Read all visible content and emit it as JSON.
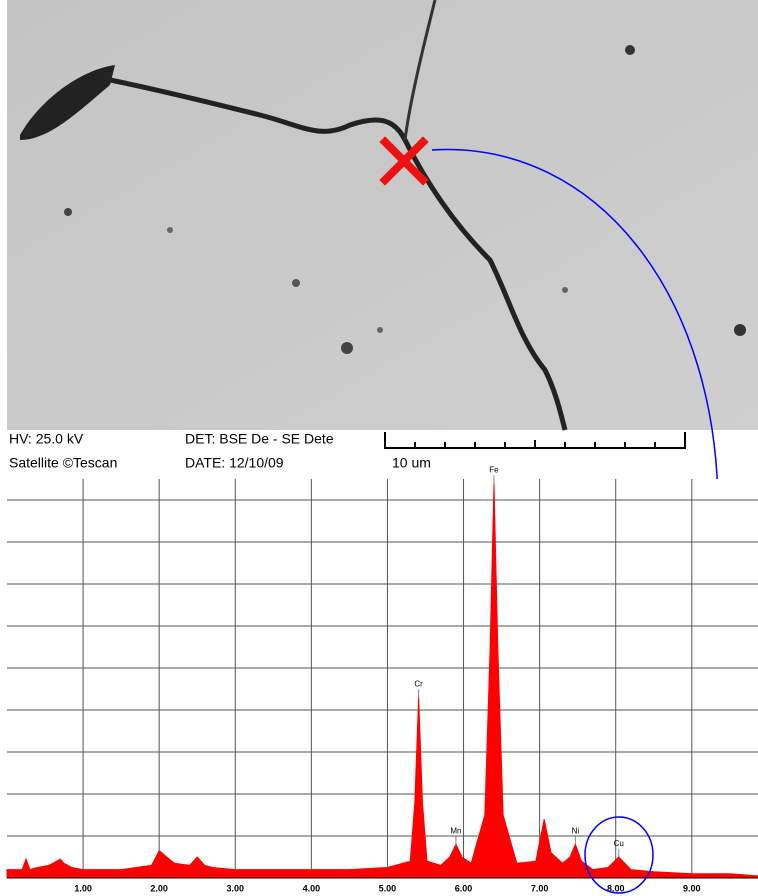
{
  "image_info": {
    "hv": "HV: 25.0 kV",
    "instrument": "Satellite ©Tescan",
    "detector": "DET: BSE De - SE Dete",
    "date": "DATE: 12/10/09",
    "scale": "10 um"
  },
  "chart_data": {
    "type": "area",
    "color": "#ff0000",
    "grid": true,
    "x": [
      0,
      0.2,
      0.25,
      0.3,
      0.4,
      0.55,
      0.7,
      0.75,
      0.85,
      1.0,
      1.5,
      1.9,
      2.0,
      2.1,
      2.2,
      2.4,
      2.5,
      2.6,
      2.7,
      3.0,
      3.5,
      4.0,
      4.5,
      5.0,
      5.3,
      5.36,
      5.41,
      5.46,
      5.52,
      5.7,
      5.82,
      5.9,
      5.98,
      6.1,
      6.28,
      6.35,
      6.4,
      6.45,
      6.52,
      6.7,
      6.95,
      7.06,
      7.15,
      7.3,
      7.4,
      7.47,
      7.55,
      7.7,
      7.9,
      8.04,
      8.2,
      8.5,
      9.0,
      9.5,
      9.87
    ],
    "values": [
      0.2,
      0.2,
      0.45,
      0.2,
      0.25,
      0.3,
      0.45,
      0.35,
      0.25,
      0.2,
      0.2,
      0.3,
      0.65,
      0.5,
      0.35,
      0.3,
      0.5,
      0.3,
      0.25,
      0.2,
      0.2,
      0.2,
      0.2,
      0.25,
      0.4,
      1.8,
      4.3,
      1.8,
      0.4,
      0.3,
      0.5,
      0.8,
      0.5,
      0.35,
      1.5,
      5.5,
      9.4,
      5.5,
      1.5,
      0.35,
      0.4,
      1.4,
      0.6,
      0.35,
      0.5,
      0.8,
      0.4,
      0.2,
      0.25,
      0.5,
      0.2,
      0.15,
      0.1,
      0.1,
      0.05
    ],
    "xlim": [
      0,
      9.87
    ],
    "ylim": [
      0,
      9.5
    ],
    "xticks": [
      {
        "value": 1,
        "label": "1.00"
      },
      {
        "value": 2,
        "label": "2.00"
      },
      {
        "value": 3,
        "label": "3.00"
      },
      {
        "value": 4,
        "label": "4.00"
      },
      {
        "value": 5,
        "label": "5.00"
      },
      {
        "value": 6,
        "label": "6.00"
      },
      {
        "value": 7,
        "label": "7.00"
      },
      {
        "value": 8,
        "label": "8.00"
      },
      {
        "value": 9,
        "label": "9.00"
      }
    ],
    "yticks": [
      0,
      1,
      2,
      3,
      4,
      5,
      6,
      7,
      8,
      9
    ],
    "annotations": [
      {
        "text": "Cr",
        "x": 5.41,
        "y": 4.3
      },
      {
        "text": "Mn",
        "x": 5.9,
        "y": 0.8
      },
      {
        "text": "Fe",
        "x": 6.4,
        "y": 9.4
      },
      {
        "text": "Ni",
        "x": 7.47,
        "y": 0.8
      },
      {
        "text": "Cu",
        "x": 8.04,
        "y": 0.5
      }
    ]
  }
}
